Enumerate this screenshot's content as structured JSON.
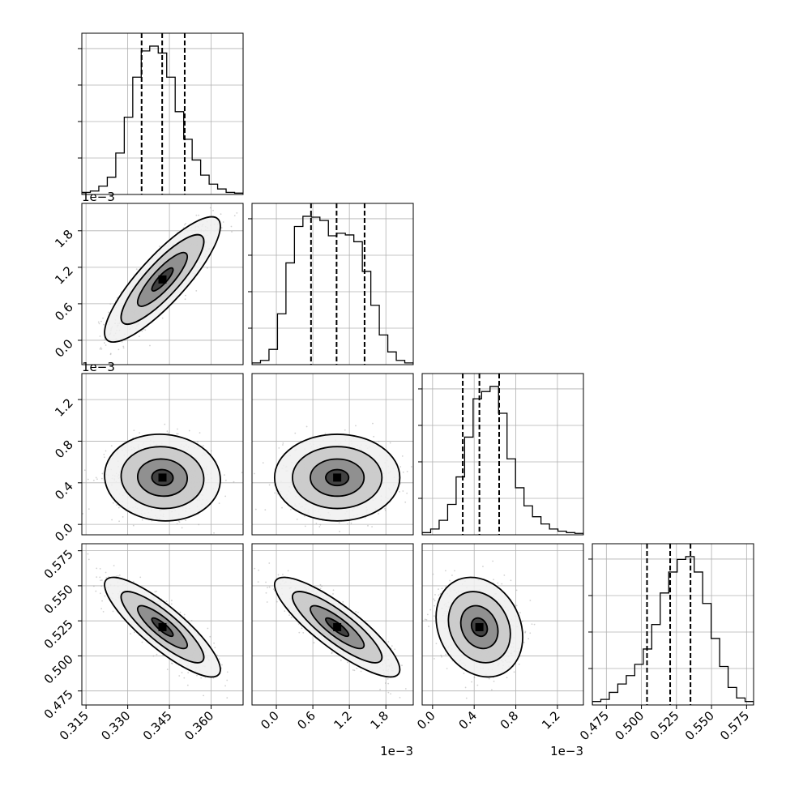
{
  "chart_data": {
    "type": "corner",
    "parameters": 4,
    "grid": true,
    "colors": {
      "hist": "#000000",
      "scatter": "#999999",
      "density": "#000000",
      "grid": "#b0b0b0",
      "frame": "#000000"
    },
    "axis_tick_labels": {
      "p0": [
        "0.315",
        "0.330",
        "0.345",
        "0.360"
      ],
      "p1": [
        "0.0",
        "0.6",
        "1.2",
        "1.8"
      ],
      "p2": [
        "0.0",
        "0.4",
        "0.8",
        "1.2"
      ],
      "p3": [
        "0.475",
        "0.500",
        "0.525",
        "0.550",
        "0.575"
      ]
    },
    "axis_tick_values": {
      "p0": [
        0.315,
        0.33,
        0.345,
        0.36
      ],
      "p1": [
        0.0,
        0.6,
        1.2,
        1.8
      ],
      "p2": [
        0.0,
        0.4,
        0.8,
        1.2
      ],
      "p3": [
        0.475,
        0.5,
        0.525,
        0.55,
        0.575
      ]
    },
    "axis_ranges": {
      "p0": [
        0.3135,
        0.3715
      ],
      "p1": [
        -0.4,
        2.25
      ],
      "p2": [
        -0.1,
        1.45
      ],
      "p3": [
        0.465,
        0.58
      ]
    },
    "offset_labels": {
      "p1": "1e−3",
      "p2": "1e−3"
    },
    "quantiles": {
      "p0": [
        0.335,
        0.3424,
        0.3505
      ],
      "p1": [
        0.57,
        0.99,
        1.45
      ],
      "p2": [
        0.29,
        0.45,
        0.64
      ],
      "p3": [
        0.504,
        0.5205,
        0.535
      ]
    },
    "histograms": {
      "p0": [
        3,
        5,
        12,
        25,
        60,
        112,
        170,
        208,
        215,
        205,
        170,
        120,
        80,
        50,
        28,
        15,
        8,
        3,
        2
      ],
      "p1": [
        2,
        5,
        18,
        60,
        120,
        163,
        175,
        174,
        170,
        152,
        155,
        153,
        145,
        110,
        70,
        35,
        15,
        5,
        2
      ],
      "p2": [
        3,
        8,
        20,
        42,
        80,
        135,
        188,
        198,
        205,
        168,
        105,
        65,
        40,
        25,
        15,
        8,
        5,
        3,
        2
      ],
      "p3": [
        5,
        8,
        18,
        30,
        42,
        58,
        80,
        115,
        160,
        190,
        208,
        212,
        190,
        145,
        95,
        55,
        25,
        10,
        5
      ]
    },
    "pairs": [
      {
        "x": "p0",
        "y": "p1",
        "mean": [
          0.3425,
          1.0
        ],
        "sd": [
          0.0085,
          0.42
        ],
        "rho": 0.85
      },
      {
        "x": "p0",
        "y": "p2",
        "mean": [
          0.3425,
          0.45
        ],
        "sd": [
          0.0085,
          0.17
        ],
        "rho": -0.05
      },
      {
        "x": "p1",
        "y": "p2",
        "mean": [
          1.0,
          0.45
        ],
        "sd": [
          0.42,
          0.17
        ],
        "rho": 0.0
      },
      {
        "x": "p0",
        "y": "p3",
        "mean": [
          0.3425,
          0.5205
        ],
        "sd": [
          0.0085,
          0.0145
        ],
        "rho": -0.85
      },
      {
        "x": "p1",
        "y": "p3",
        "mean": [
          1.0,
          0.5205
        ],
        "sd": [
          0.42,
          0.0145
        ],
        "rho": -0.85
      },
      {
        "x": "p2",
        "y": "p3",
        "mean": [
          0.45,
          0.5205
        ],
        "sd": [
          0.17,
          0.0145
        ],
        "rho": -0.2
      }
    ]
  }
}
